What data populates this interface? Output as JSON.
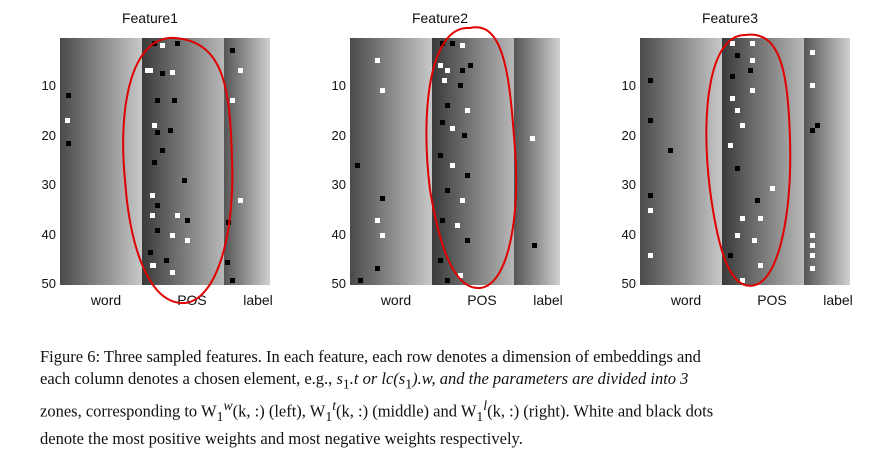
{
  "figure": {
    "panels": [
      {
        "title": "Feature1",
        "x_labels": [
          "word",
          "POS",
          "label"
        ],
        "y_ticks": [
          "10",
          "20",
          "30",
          "40",
          "50"
        ]
      },
      {
        "title": "Feature2",
        "x_labels": [
          "word",
          "POS",
          "label"
        ],
        "y_ticks": [
          "10",
          "20",
          "30",
          "40",
          "50"
        ]
      },
      {
        "title": "Feature3",
        "x_labels": [
          "word",
          "POS",
          "label"
        ],
        "y_ticks": [
          "10",
          "20",
          "30",
          "40",
          "50"
        ]
      }
    ],
    "caption": {
      "line1": "Figure 6: Three sampled features. In each feature, each row denotes a dimension of embeddings and",
      "line2a": "each column denotes a chosen element, e.g., ",
      "line2b": "s",
      "line2c": "1",
      "line2d": ".t or lc(s",
      "line2e": "1",
      "line2f": ").w, and the parameters are divided into 3",
      "line3a": "zones, corresponding to W",
      "line3b": "1",
      "line3c": "w",
      "line3d": "(k, :) (left), W",
      "line3e": "1",
      "line3f": "t",
      "line3g": "(k, :) (middle) and W",
      "line3h": "1",
      "line3i": "l",
      "line3j": "(k, :) (right). White and black dots",
      "line4": "denote the most positive weights and most negative weights respectively."
    }
  }
}
